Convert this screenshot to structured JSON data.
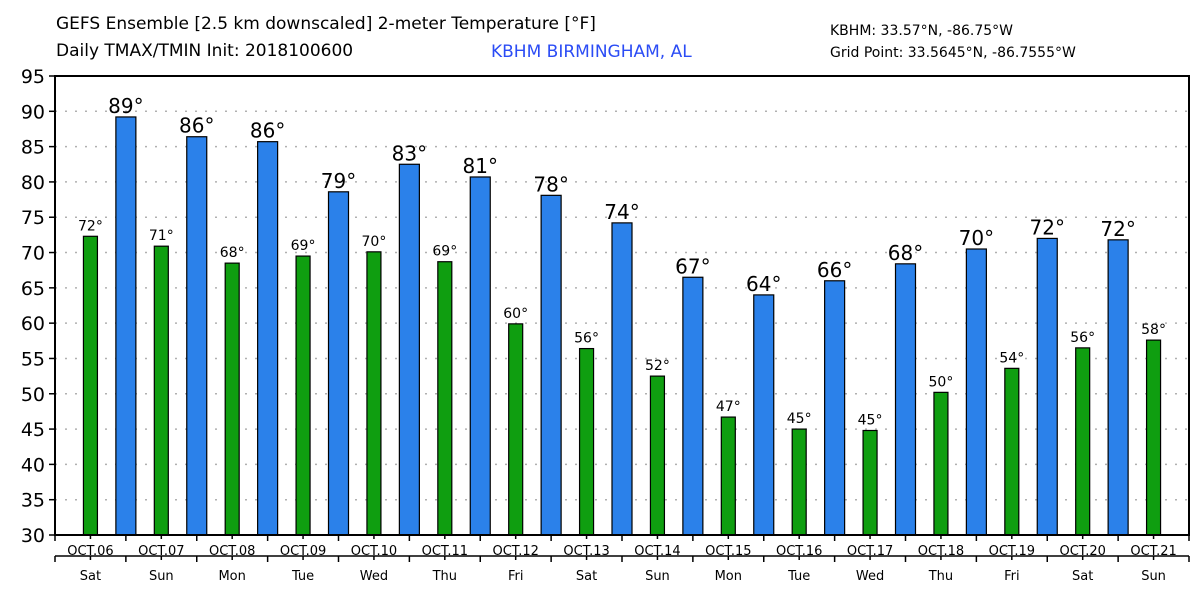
{
  "header": {
    "title_line1": "GEFS Ensemble [2.5 km downscaled] 2-meter Temperature [°F]",
    "title_line2": "Daily TMAX/TMIN Init: 2018100600",
    "station": "KBHM BIRMINGHAM, AL",
    "station_coords": "KBHM: 33.57°N, -86.75°W",
    "grid_point": "Grid Point: 33.5645°N, -86.7555°W"
  },
  "colors": {
    "tmax": "#2b81ea",
    "tmin": "#0f9e10",
    "station_text": "#2b4cf5",
    "grid": "#b0b0b0"
  },
  "chart_data": {
    "type": "bar",
    "title": "GEFS Ensemble [2.5 km downscaled] 2-meter Temperature [°F]",
    "subtitle": "Daily TMAX/TMIN Init: 2018100600",
    "xlabel": "",
    "ylabel": "",
    "ylim": [
      30,
      95
    ],
    "yticks": [
      30,
      35,
      40,
      45,
      50,
      55,
      60,
      65,
      70,
      75,
      80,
      85,
      90,
      95
    ],
    "grid": "horizontal dotted",
    "legend": "none",
    "categories": [
      "OCT.06",
      "OCT.07",
      "OCT.08",
      "OCT.09",
      "OCT.10",
      "OCT.11",
      "OCT.12",
      "OCT.13",
      "OCT.14",
      "OCT.15",
      "OCT.16",
      "OCT.17",
      "OCT.18",
      "OCT.19",
      "OCT.20",
      "OCT.21"
    ],
    "weekdays": [
      "Sat",
      "Sun",
      "Mon",
      "Tue",
      "Wed",
      "Thu",
      "Fri",
      "Sat",
      "Sun",
      "Mon",
      "Tue",
      "Wed",
      "Thu",
      "Fri",
      "Sat",
      "Sun"
    ],
    "series": [
      {
        "name": "TMIN",
        "placement": "day-center",
        "values": [
          72.3,
          70.9,
          68.5,
          69.5,
          70.1,
          68.7,
          59.9,
          56.4,
          52.5,
          46.7,
          45.0,
          44.8,
          50.2,
          53.6,
          56.5,
          57.6
        ],
        "labels": [
          "72°",
          "71°",
          "68°",
          "69°",
          "70°",
          "69°",
          "60°",
          "56°",
          "52°",
          "47°",
          "45°",
          "45°",
          "50°",
          "54°",
          "56°",
          "58°"
        ]
      },
      {
        "name": "TMAX",
        "placement": "between-days",
        "values": [
          89.2,
          86.4,
          85.7,
          78.6,
          82.5,
          80.7,
          78.1,
          74.2,
          66.5,
          64.0,
          66.0,
          68.4,
          70.5,
          72.0,
          71.8
        ],
        "labels": [
          "89°",
          "86°",
          "86°",
          "79°",
          "83°",
          "81°",
          "78°",
          "74°",
          "67°",
          "64°",
          "66°",
          "68°",
          "70°",
          "72°",
          "72°"
        ]
      }
    ]
  }
}
